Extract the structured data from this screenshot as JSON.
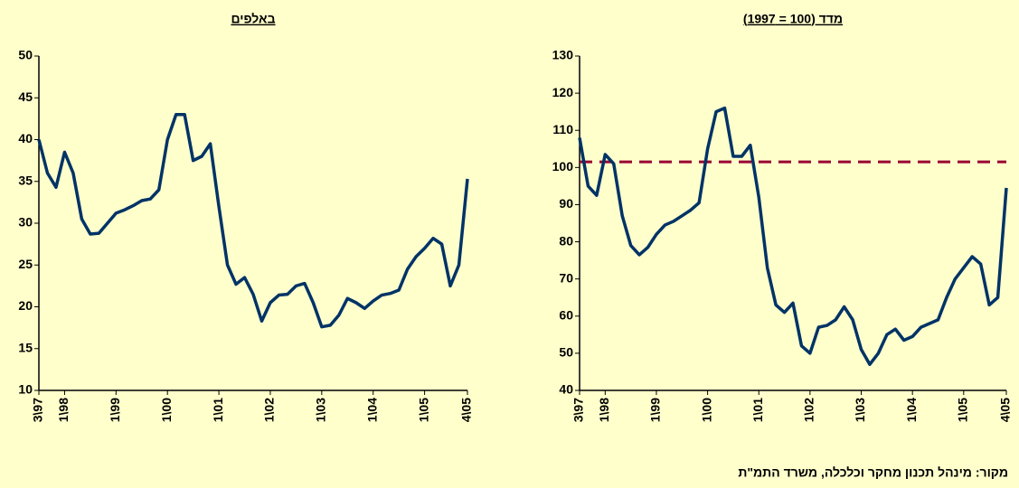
{
  "chart_data": [
    {
      "type": "line",
      "title": "באלפים",
      "categories": [
        "3\\97",
        null,
        null,
        "1\\98",
        null,
        null,
        null,
        null,
        null,
        "1\\99",
        null,
        null,
        null,
        null,
        null,
        "1\\00",
        null,
        null,
        null,
        null,
        null,
        "1\\01",
        null,
        null,
        null,
        null,
        null,
        "1\\02",
        null,
        null,
        null,
        null,
        null,
        "1\\03",
        null,
        null,
        null,
        null,
        null,
        "1\\04",
        null,
        null,
        null,
        null,
        null,
        "1\\05",
        null,
        null,
        null,
        null,
        "4\\05"
      ],
      "series": [
        {
          "color": "#003366",
          "values": [
            40,
            36,
            34.3,
            38.5,
            36,
            30.5,
            28.7,
            28.8,
            30,
            31.2,
            31.6,
            32.1,
            32.7,
            32.9,
            34,
            40,
            43,
            43,
            37.5,
            38,
            39.5,
            32,
            25,
            22.7,
            23.5,
            21.5,
            18.3,
            20.5,
            21.4,
            21.5,
            22.5,
            22.8,
            20.5,
            17.6,
            17.8,
            19,
            21,
            20.5,
            19.8,
            20.7,
            21.4,
            21.6,
            22,
            24.5,
            26,
            27,
            28.2,
            27.5,
            22.5,
            25,
            35.3
          ]
        }
      ],
      "ylim": [
        10,
        50
      ],
      "yticks": [
        10,
        15,
        20,
        25,
        30,
        35,
        40,
        45,
        50
      ]
    },
    {
      "type": "line",
      "title": "מדד (100 = 1997)",
      "categories": [
        "3\\97",
        null,
        null,
        "1\\98",
        null,
        null,
        null,
        null,
        null,
        "1\\99",
        null,
        null,
        null,
        null,
        null,
        "1\\00",
        null,
        null,
        null,
        null,
        null,
        "1\\01",
        null,
        null,
        null,
        null,
        null,
        "1\\02",
        null,
        null,
        null,
        null,
        null,
        "1\\03",
        null,
        null,
        null,
        null,
        null,
        "1\\04",
        null,
        null,
        null,
        null,
        null,
        "1\\05",
        null,
        null,
        null,
        null,
        "4\\05"
      ],
      "series": [
        {
          "color": "#003366",
          "values": [
            108,
            95,
            92.5,
            103.5,
            101,
            87,
            79,
            76.5,
            78.5,
            82,
            84.5,
            85.5,
            87,
            88.5,
            90.5,
            105,
            115,
            116,
            103,
            103,
            106,
            92,
            73,
            63,
            61,
            63.5,
            52,
            50,
            57,
            57.5,
            59,
            62.5,
            59,
            51,
            47,
            50,
            55,
            56.5,
            53.5,
            54.5,
            57,
            58,
            59,
            65,
            70,
            73,
            76,
            74,
            63,
            65,
            94.5
          ]
        }
      ],
      "reference_line": 101.5,
      "reference_color": "#990033",
      "ylim": [
        40,
        130
      ],
      "yticks": [
        40,
        50,
        60,
        70,
        80,
        90,
        100,
        110,
        120,
        130
      ]
    }
  ],
  "source": "מקור: מינהל תכנון מחקר וכלכלה, משרד התמ\"ת"
}
